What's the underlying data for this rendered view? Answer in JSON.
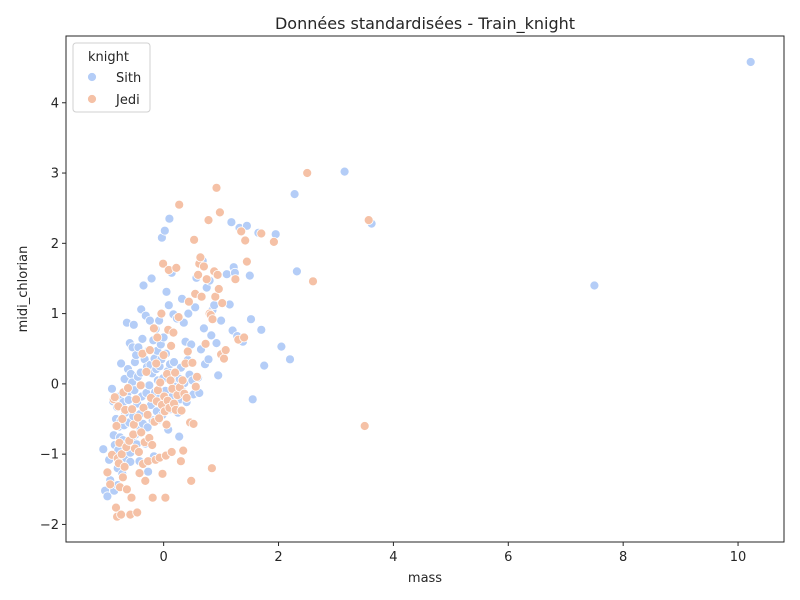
{
  "chart_data": {
    "type": "scatter",
    "title": "Données standardisées - Train_knight",
    "xlabel": "mass",
    "ylabel": "midi_chlorian",
    "xlim": [
      -1.7,
      10.8
    ],
    "ylim": [
      -2.25,
      4.95
    ],
    "xticks": [
      0,
      2,
      4,
      6,
      8,
      10
    ],
    "yticks": [
      -2,
      -1,
      0,
      1,
      2,
      3,
      4
    ],
    "grid": false,
    "legend": {
      "title": "knight",
      "position": "top-left"
    },
    "series": [
      {
        "name": "Sith",
        "color": "#b4cdf7",
        "points": [
          [
            -1.05,
            -0.93
          ],
          [
            -1.02,
            -1.52
          ],
          [
            -0.98,
            -1.6
          ],
          [
            -0.95,
            -1.08
          ],
          [
            -0.93,
            -1.37
          ],
          [
            -0.9,
            -0.07
          ],
          [
            -0.88,
            -0.25
          ],
          [
            -0.87,
            -0.73
          ],
          [
            -0.86,
            -1.52
          ],
          [
            -0.85,
            -0.87
          ],
          [
            -0.83,
            -0.5
          ],
          [
            -0.81,
            -0.33
          ],
          [
            -0.8,
            -1.2
          ],
          [
            -0.8,
            -1.44
          ],
          [
            -0.79,
            -0.94
          ],
          [
            -0.78,
            -0.61
          ],
          [
            -0.77,
            -0.18
          ],
          [
            -0.76,
            -0.76
          ],
          [
            -0.75,
            -0.53
          ],
          [
            -0.74,
            0.29
          ],
          [
            -0.73,
            -1.04
          ],
          [
            -0.72,
            -1.28
          ],
          [
            -0.71,
            -0.8
          ],
          [
            -0.7,
            -0.26
          ],
          [
            -0.69,
            -0.59
          ],
          [
            -0.68,
            0.07
          ],
          [
            -0.67,
            -0.41
          ],
          [
            -0.66,
            -0.88
          ],
          [
            -0.65,
            -1.06
          ],
          [
            -0.64,
            0.87
          ],
          [
            -0.63,
            -0.13
          ],
          [
            -0.62,
            0.21
          ],
          [
            -0.61,
            -0.23
          ],
          [
            -0.6,
            -0.55
          ],
          [
            -0.59,
            0.58
          ],
          [
            -0.58,
            -0.98
          ],
          [
            -0.58,
            -1.11
          ],
          [
            -0.57,
            0.14
          ],
          [
            -0.56,
            -0.35
          ],
          [
            -0.55,
            0.02
          ],
          [
            -0.54,
            0.52
          ],
          [
            -0.53,
            -0.76
          ],
          [
            -0.53,
            -0.46
          ],
          [
            -0.52,
            0.84
          ],
          [
            -0.51,
            -0.09
          ],
          [
            -0.5,
            0.31
          ],
          [
            -0.49,
            -0.72
          ],
          [
            -0.48,
            0.41
          ],
          [
            -0.47,
            -0.86
          ],
          [
            -0.46,
            -0.28
          ],
          [
            -0.45,
            0.1
          ],
          [
            -0.44,
            0.52
          ],
          [
            -0.43,
            -0.6
          ],
          [
            -0.42,
            -1.1
          ],
          [
            -0.41,
            -0.43
          ],
          [
            -0.4,
            0.16
          ],
          [
            -0.39,
            1.06
          ],
          [
            -0.38,
            -0.18
          ],
          [
            -0.37,
            0.64
          ],
          [
            -0.36,
            -0.57
          ],
          [
            -0.35,
            1.4
          ],
          [
            -0.34,
            -0.34
          ],
          [
            -0.33,
            0.35
          ],
          [
            -0.32,
            -0.85
          ],
          [
            -0.31,
            0.97
          ],
          [
            -0.3,
            -0.13
          ],
          [
            -0.29,
            0.24
          ],
          [
            -0.28,
            -0.62
          ],
          [
            -0.27,
            -1.25
          ],
          [
            -0.26,
            0.48
          ],
          [
            -0.25,
            -0.02
          ],
          [
            -0.24,
            0.9
          ],
          [
            -0.23,
            0.27
          ],
          [
            -0.22,
            -0.3
          ],
          [
            -0.21,
            1.5
          ],
          [
            -0.2,
            0.15
          ],
          [
            -0.19,
            -0.52
          ],
          [
            -0.18,
            0.62
          ],
          [
            -0.17,
            -1.03
          ],
          [
            -0.16,
            0.36
          ],
          [
            -0.15,
            -0.12
          ],
          [
            -0.14,
            0.78
          ],
          [
            -0.13,
            0.21
          ],
          [
            -0.12,
            -0.39
          ],
          [
            -0.11,
            0.47
          ],
          [
            -0.1,
            0.05
          ],
          [
            -0.09,
            -0.51
          ],
          [
            -0.08,
            0.9
          ],
          [
            -0.07,
            0.25
          ],
          [
            -0.06,
            -0.19
          ],
          [
            -0.05,
            0.56
          ],
          [
            -0.04,
            0.35
          ],
          [
            -0.03,
            2.08
          ],
          [
            -0.02,
            -0.44
          ],
          [
            -0.01,
            0.08
          ],
          [
            0.0,
            0.66
          ],
          [
            0.02,
            2.18
          ],
          [
            0.03,
            -0.1
          ],
          [
            0.04,
            0.43
          ],
          [
            0.05,
            1.31
          ],
          [
            0.06,
            -0.23
          ],
          [
            0.07,
            0.18
          ],
          [
            0.08,
            -0.65
          ],
          [
            0.09,
            1.12
          ],
          [
            0.1,
            2.35
          ],
          [
            0.11,
            0.28
          ],
          [
            0.12,
            -0.36
          ],
          [
            0.13,
            0.54
          ],
          [
            0.14,
            1.58
          ],
          [
            0.15,
            0.02
          ],
          [
            0.16,
            -0.17
          ],
          [
            0.17,
            0.99
          ],
          [
            0.18,
            0.31
          ],
          [
            0.19,
            -0.04
          ],
          [
            0.2,
            -0.29
          ],
          [
            0.22,
            0.13
          ],
          [
            0.23,
            0.93
          ],
          [
            0.25,
            -0.41
          ],
          [
            0.27,
            -0.75
          ],
          [
            0.28,
            0.07
          ],
          [
            0.29,
            -0.22
          ],
          [
            0.3,
            0.23
          ],
          [
            0.32,
            1.21
          ],
          [
            0.33,
            -0.11
          ],
          [
            0.35,
            0.87
          ],
          [
            0.36,
            0.01
          ],
          [
            0.38,
            0.6
          ],
          [
            0.4,
            -0.26
          ],
          [
            0.42,
            0.34
          ],
          [
            0.43,
            1.0
          ],
          [
            0.45,
            0.13
          ],
          [
            0.48,
            0.56
          ],
          [
            0.5,
            0.05
          ],
          [
            0.52,
            -0.15
          ],
          [
            0.55,
            1.09
          ],
          [
            0.57,
            1.51
          ],
          [
            0.6,
            0.09
          ],
          [
            0.62,
            -0.13
          ],
          [
            0.65,
            0.49
          ],
          [
            0.68,
            1.75
          ],
          [
            0.7,
            0.79
          ],
          [
            0.72,
            0.28
          ],
          [
            0.75,
            1.37
          ],
          [
            0.78,
            0.35
          ],
          [
            0.8,
            1.47
          ],
          [
            0.83,
            0.69
          ],
          [
            0.85,
            1.05
          ],
          [
            0.88,
            1.12
          ],
          [
            0.92,
            0.58
          ],
          [
            0.95,
            0.12
          ],
          [
            1.0,
            0.9
          ],
          [
            1.05,
            0.45
          ],
          [
            1.1,
            1.56
          ],
          [
            1.15,
            1.13
          ],
          [
            1.18,
            2.3
          ],
          [
            1.2,
            0.76
          ],
          [
            1.22,
            1.66
          ],
          [
            1.24,
            1.58
          ],
          [
            1.28,
            0.68
          ],
          [
            1.32,
            2.22
          ],
          [
            1.38,
            0.6
          ],
          [
            1.45,
            2.25
          ],
          [
            1.5,
            1.54
          ],
          [
            1.52,
            0.92
          ],
          [
            1.55,
            -0.22
          ],
          [
            1.65,
            2.15
          ],
          [
            1.7,
            0.77
          ],
          [
            1.75,
            0.26
          ],
          [
            1.95,
            2.13
          ],
          [
            2.05,
            0.53
          ],
          [
            2.2,
            0.35
          ],
          [
            2.28,
            2.7
          ],
          [
            2.32,
            1.6
          ],
          [
            3.15,
            3.02
          ],
          [
            3.62,
            2.28
          ],
          [
            7.5,
            1.4
          ],
          [
            10.22,
            4.58
          ]
        ]
      },
      {
        "name": "Jedi",
        "color": "#f5c1a6",
        "points": [
          [
            -0.98,
            -1.26
          ],
          [
            -0.93,
            -1.43
          ],
          [
            -0.9,
            -1.01
          ],
          [
            -0.87,
            -0.22
          ],
          [
            -0.85,
            -0.19
          ],
          [
            -0.83,
            -1.76
          ],
          [
            -0.82,
            -0.6
          ],
          [
            -0.81,
            -1.89
          ],
          [
            -0.8,
            -1.06
          ],
          [
            -0.79,
            -0.32
          ],
          [
            -0.78,
            -1.13
          ],
          [
            -0.77,
            -0.84
          ],
          [
            -0.76,
            -1.47
          ],
          [
            -0.74,
            -1.86
          ],
          [
            -0.73,
            -1.0
          ],
          [
            -0.72,
            -0.5
          ],
          [
            -0.71,
            -1.33
          ],
          [
            -0.7,
            -0.12
          ],
          [
            -0.68,
            -1.18
          ],
          [
            -0.67,
            -0.37
          ],
          [
            -0.65,
            -0.9
          ],
          [
            -0.64,
            -1.5
          ],
          [
            -0.62,
            -0.06
          ],
          [
            -0.6,
            -0.81
          ],
          [
            -0.58,
            -1.86
          ],
          [
            -0.56,
            -1.62
          ],
          [
            -0.55,
            -0.36
          ],
          [
            -0.53,
            -0.72
          ],
          [
            -0.52,
            -0.58
          ],
          [
            -0.5,
            -0.92
          ],
          [
            -0.48,
            -0.22
          ],
          [
            -0.46,
            -1.83
          ],
          [
            -0.45,
            -0.48
          ],
          [
            -0.43,
            -0.97
          ],
          [
            -0.42,
            -1.27
          ],
          [
            -0.4,
            -0.02
          ],
          [
            -0.39,
            -0.69
          ],
          [
            -0.37,
            0.43
          ],
          [
            -0.36,
            -1.14
          ],
          [
            -0.35,
            -0.34
          ],
          [
            -0.33,
            -0.83
          ],
          [
            -0.32,
            -1.38
          ],
          [
            -0.3,
            0.17
          ],
          [
            -0.28,
            -0.44
          ],
          [
            -0.27,
            -1.1
          ],
          [
            -0.25,
            -0.77
          ],
          [
            -0.24,
            0.48
          ],
          [
            -0.22,
            -0.2
          ],
          [
            -0.2,
            -0.87
          ],
          [
            -0.19,
            -1.62
          ],
          [
            -0.17,
            0.79
          ],
          [
            -0.16,
            -0.54
          ],
          [
            -0.14,
            -1.08
          ],
          [
            -0.13,
            0.29
          ],
          [
            -0.12,
            -0.25
          ],
          [
            -0.11,
            0.66
          ],
          [
            -0.1,
            -0.09
          ],
          [
            -0.08,
            -0.49
          ],
          [
            -0.07,
            -1.05
          ],
          [
            -0.06,
            0.02
          ],
          [
            -0.04,
            1.0
          ],
          [
            -0.03,
            -0.3
          ],
          [
            -0.02,
            -1.28
          ],
          [
            -0.01,
            1.71
          ],
          [
            0.0,
            0.41
          ],
          [
            0.01,
            -0.18
          ],
          [
            0.02,
            -0.39
          ],
          [
            0.03,
            -1.62
          ],
          [
            0.04,
            -1.02
          ],
          [
            0.05,
            -0.58
          ],
          [
            0.06,
            0.14
          ],
          [
            0.07,
            -0.24
          ],
          [
            0.08,
            0.77
          ],
          [
            0.09,
            1.62
          ],
          [
            0.1,
            -0.34
          ],
          [
            0.12,
            0.05
          ],
          [
            0.13,
            0.54
          ],
          [
            0.14,
            -0.97
          ],
          [
            0.15,
            -0.07
          ],
          [
            0.17,
            0.73
          ],
          [
            0.18,
            -0.28
          ],
          [
            0.2,
            0.16
          ],
          [
            0.21,
            -0.37
          ],
          [
            0.22,
            1.65
          ],
          [
            0.24,
            -0.16
          ],
          [
            0.26,
            0.95
          ],
          [
            0.27,
            2.55
          ],
          [
            0.28,
            -0.05
          ],
          [
            0.3,
            -1.1
          ],
          [
            0.31,
            -0.38
          ],
          [
            0.33,
            0.05
          ],
          [
            0.34,
            -0.95
          ],
          [
            0.36,
            -0.14
          ],
          [
            0.38,
            0.29
          ],
          [
            0.4,
            -0.2
          ],
          [
            0.42,
            0.46
          ],
          [
            0.44,
            1.17
          ],
          [
            0.46,
            -0.55
          ],
          [
            0.48,
            -1.38
          ],
          [
            0.5,
            0.3
          ],
          [
            0.52,
            -0.57
          ],
          [
            0.53,
            2.05
          ],
          [
            0.55,
            1.28
          ],
          [
            0.56,
            -0.04
          ],
          [
            0.58,
            0.1
          ],
          [
            0.6,
            1.55
          ],
          [
            0.62,
            1.71
          ],
          [
            0.64,
            1.8
          ],
          [
            0.66,
            1.24
          ],
          [
            0.7,
            1.67
          ],
          [
            0.73,
            0.57
          ],
          [
            0.75,
            1.49
          ],
          [
            0.78,
            2.33
          ],
          [
            0.8,
            1.0
          ],
          [
            0.82,
            0.98
          ],
          [
            0.84,
            -1.2
          ],
          [
            0.85,
            0.92
          ],
          [
            0.88,
            1.6
          ],
          [
            0.9,
            1.24
          ],
          [
            0.92,
            2.79
          ],
          [
            0.94,
            1.55
          ],
          [
            0.96,
            1.35
          ],
          [
            0.98,
            2.44
          ],
          [
            1.0,
            0.42
          ],
          [
            1.02,
            1.15
          ],
          [
            1.05,
            0.36
          ],
          [
            1.08,
            0.48
          ],
          [
            1.25,
            1.49
          ],
          [
            1.3,
            0.63
          ],
          [
            1.35,
            2.17
          ],
          [
            1.4,
            0.66
          ],
          [
            1.42,
            2.04
          ],
          [
            1.45,
            1.74
          ],
          [
            1.7,
            2.14
          ],
          [
            1.92,
            2.02
          ],
          [
            2.5,
            3.0
          ],
          [
            2.6,
            1.46
          ],
          [
            3.5,
            -0.6
          ],
          [
            3.57,
            2.33
          ]
        ]
      }
    ]
  }
}
